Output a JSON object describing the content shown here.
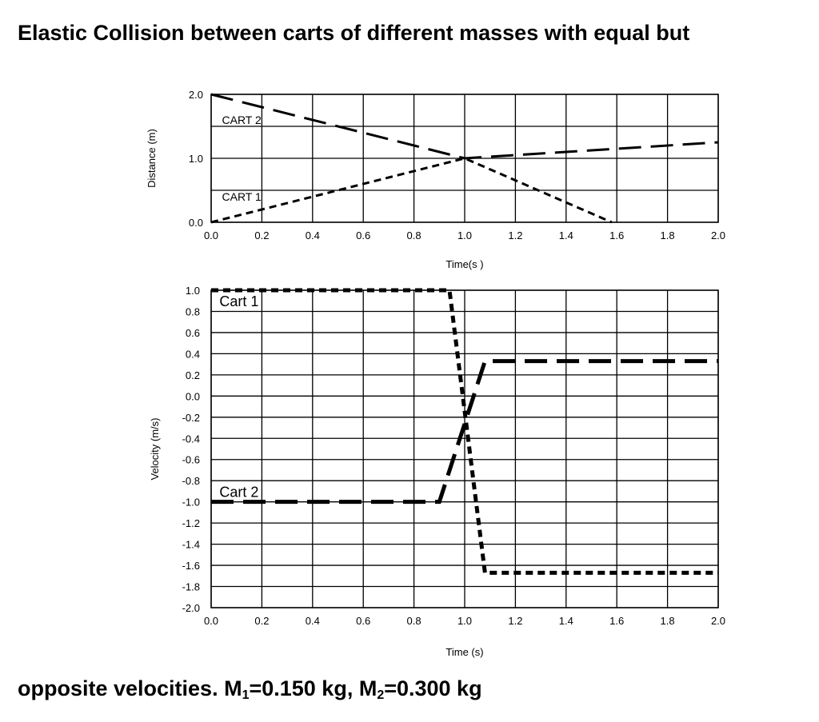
{
  "title_line1": "Elastic Collision between carts of different masses with equal but",
  "caption": {
    "prefix": "opposite velocities. M",
    "sub1": "1",
    "mid": "=0.150 kg, M",
    "sub2": "2",
    "suffix": "=0.300 kg"
  },
  "chart_data": [
    {
      "type": "line",
      "title": "",
      "xlabel": "Time(s )",
      "ylabel": "Distance (m)",
      "xlim": [
        0,
        2
      ],
      "ylim": [
        0,
        2
      ],
      "grid": true,
      "xticks": [
        "0.0",
        "0.2",
        "0.4",
        "0.6",
        "0.8",
        "1.0",
        "1.2",
        "1.4",
        "1.6",
        "1.8",
        "2.0"
      ],
      "yticks": [
        {
          "value": 0,
          "label": "0.0"
        },
        {
          "value": 1,
          "label": "1.0"
        },
        {
          "value": 2,
          "label": "2.0"
        }
      ],
      "series": [
        {
          "name": "CART 1",
          "style": "short-dash",
          "x": [
            0,
            1.0,
            1.58
          ],
          "y": [
            0.0,
            1.0,
            0.0
          ]
        },
        {
          "name": "CART 2",
          "style": "long-dash",
          "x": [
            0,
            1.0,
            2.0
          ],
          "y": [
            2.0,
            1.0,
            1.25
          ]
        }
      ],
      "annotations": [
        {
          "text": "CART 2",
          "x": 0.03,
          "y": 1.6
        },
        {
          "text": "CART 1",
          "x": 0.03,
          "y": 0.4
        }
      ]
    },
    {
      "type": "line",
      "title": "",
      "xlabel": "Time (s)",
      "ylabel": "Velocity (m/s)",
      "xlim": [
        0,
        2
      ],
      "ylim": [
        -2,
        1
      ],
      "grid": true,
      "xticks": [
        "0.0",
        "0.2",
        "0.4",
        "0.6",
        "0.8",
        "1.0",
        "1.2",
        "1.4",
        "1.6",
        "1.8",
        "2.0"
      ],
      "yticks": [
        "1.0",
        "0.8",
        "0.6",
        "0.4",
        "0.2",
        "0.0",
        "-0.2",
        "-0.4",
        "-0.6",
        "-0.8",
        "-1.0",
        "-1.2",
        "-1.4",
        "-1.6",
        "-1.8",
        "-2.0"
      ],
      "series": [
        {
          "name": "Cart 1",
          "style": "short-dash",
          "x": [
            0,
            0.94,
            1.08,
            2.0
          ],
          "y": [
            1.0,
            1.0,
            -1.67,
            -1.67
          ]
        },
        {
          "name": "Cart 2",
          "style": "long-dash",
          "x": [
            0,
            0.9,
            1.08,
            2.0
          ],
          "y": [
            -1.0,
            -1.0,
            0.33,
            0.33
          ]
        }
      ],
      "annotations": [
        {
          "text": "Cart 1",
          "x": 0.02,
          "y": 0.9
        },
        {
          "text": "Cart 2",
          "x": 0.02,
          "y": -0.9
        }
      ]
    }
  ]
}
